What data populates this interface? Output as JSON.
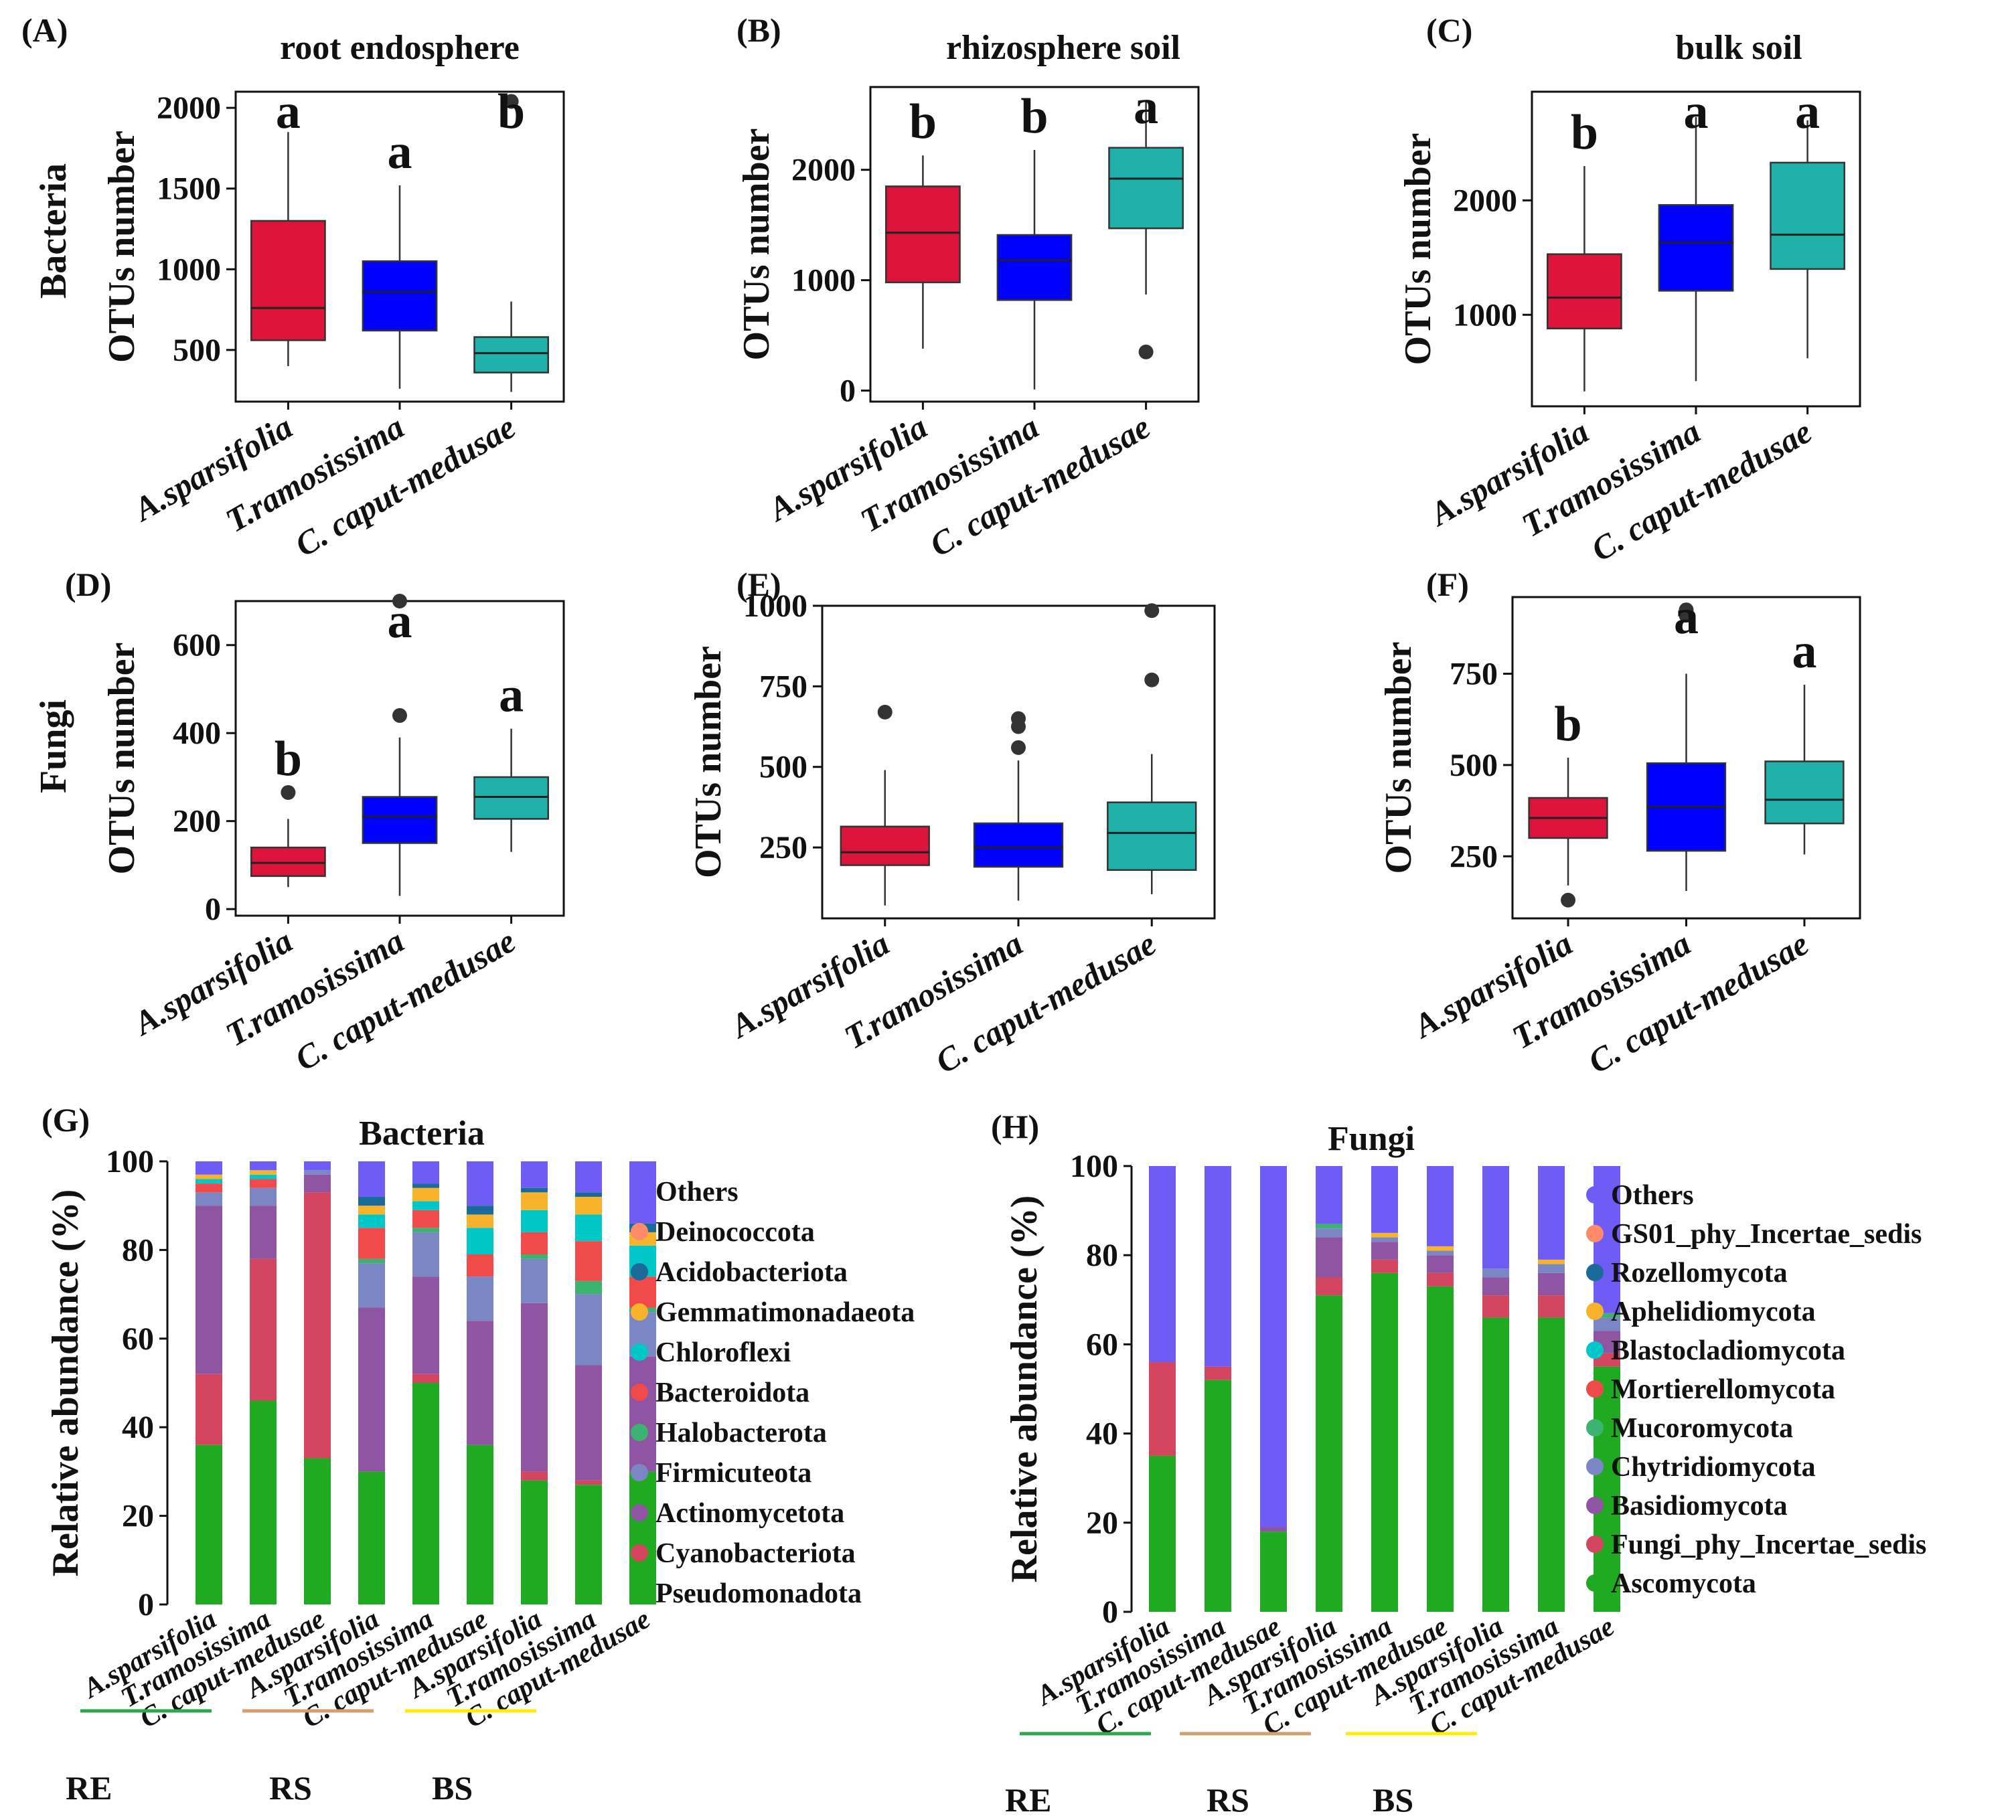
{
  "figure": {
    "row_labels": {
      "bacteria": "Bacteria",
      "fungi": "Fungi"
    },
    "y_label": "OTUs number",
    "categories": [
      "A.sparsifolia",
      "T.ramosissima",
      "C. caput-medusae"
    ],
    "group_colors": [
      "#dc143c",
      "#0000ff",
      "#20b2aa"
    ]
  },
  "chart_data": [
    {
      "type": "box",
      "panel": "(A)",
      "title": "root endosphere",
      "row": "Bacteria",
      "ylim": [
        180,
        2100
      ],
      "yticks": [
        500,
        1000,
        1500,
        2000
      ],
      "boxes": [
        {
          "category": "A.sparsifolia",
          "min": 400,
          "q1": 560,
          "median": 760,
          "q3": 1300,
          "max": 1850,
          "outliers": [],
          "letter": "a"
        },
        {
          "category": "T.ramosissima",
          "min": 260,
          "q1": 620,
          "median": 860,
          "q3": 1050,
          "max": 1520,
          "outliers": [],
          "letter": "a"
        },
        {
          "category": "C. caput-medusae",
          "min": 240,
          "q1": 360,
          "median": 480,
          "q3": 580,
          "max": 800,
          "outliers": [
            2040
          ],
          "letter": "b"
        }
      ]
    },
    {
      "type": "box",
      "panel": "(B)",
      "title": "rhizosphere soil",
      "row": "Bacteria",
      "ylim": [
        -100,
        2750
      ],
      "yticks": [
        0,
        1000,
        2000
      ],
      "boxes": [
        {
          "category": "A.sparsifolia",
          "min": 380,
          "q1": 980,
          "median": 1430,
          "q3": 1850,
          "max": 2130,
          "outliers": [],
          "letter": "b"
        },
        {
          "category": "T.ramosissima",
          "min": 10,
          "q1": 820,
          "median": 1180,
          "q3": 1410,
          "max": 2180,
          "outliers": [],
          "letter": "b"
        },
        {
          "category": "C. caput-medusae",
          "min": 870,
          "q1": 1470,
          "median": 1920,
          "q3": 2200,
          "max": 2620,
          "outliers": [
            350
          ],
          "letter": "a"
        }
      ]
    },
    {
      "type": "box",
      "panel": "(C)",
      "title": "bulk soil",
      "row": "Bacteria",
      "ylim": [
        200,
        2950
      ],
      "yticks": [
        1000,
        2000
      ],
      "boxes": [
        {
          "category": "A.sparsifolia",
          "min": 330,
          "q1": 880,
          "median": 1150,
          "q3": 1530,
          "max": 2300,
          "outliers": [],
          "letter": "b"
        },
        {
          "category": "T.ramosissima",
          "min": 420,
          "q1": 1210,
          "median": 1630,
          "q3": 1960,
          "max": 2730,
          "outliers": [],
          "letter": "a"
        },
        {
          "category": "C. caput-medusae",
          "min": 620,
          "q1": 1400,
          "median": 1700,
          "q3": 2330,
          "max": 2700,
          "outliers": [],
          "letter": "a"
        }
      ]
    },
    {
      "type": "box",
      "panel": "(D)",
      "title": "",
      "row": "Fungi",
      "ylim": [
        -15,
        700
      ],
      "yticks": [
        0,
        200,
        400,
        600
      ],
      "boxes": [
        {
          "category": "A.sparsifolia",
          "min": 50,
          "q1": 75,
          "median": 105,
          "q3": 140,
          "max": 205,
          "outliers": [
            265
          ],
          "letter": "b"
        },
        {
          "category": "T.ramosissima",
          "min": 30,
          "q1": 150,
          "median": 210,
          "q3": 255,
          "max": 390,
          "outliers": [
            440,
            700
          ],
          "letter": "a"
        },
        {
          "category": "C. caput-medusae",
          "min": 130,
          "q1": 205,
          "median": 255,
          "q3": 300,
          "max": 410,
          "outliers": [],
          "letter": "a"
        }
      ]
    },
    {
      "type": "box",
      "panel": "(E)",
      "title": "",
      "row": "Fungi",
      "ylim": [
        30,
        1000
      ],
      "yticks": [
        250,
        500,
        750,
        1000
      ],
      "boxes": [
        {
          "category": "A.sparsifolia",
          "min": 70,
          "q1": 195,
          "median": 235,
          "q3": 315,
          "max": 490,
          "outliers": [
            670
          ],
          "letter": ""
        },
        {
          "category": "T.ramosissima",
          "min": 85,
          "q1": 190,
          "median": 250,
          "q3": 325,
          "max": 520,
          "outliers": [
            560,
            625,
            650
          ],
          "letter": ""
        },
        {
          "category": "C. caput-medusae",
          "min": 105,
          "q1": 180,
          "median": 295,
          "q3": 390,
          "max": 540,
          "outliers": [
            770,
            985
          ],
          "letter": ""
        }
      ]
    },
    {
      "type": "box",
      "panel": "(F)",
      "title": "",
      "row": "Fungi",
      "ylim": [
        80,
        960
      ],
      "yticks": [
        250,
        500,
        750
      ],
      "boxes": [
        {
          "category": "A.sparsifolia",
          "min": 170,
          "q1": 300,
          "median": 355,
          "q3": 410,
          "max": 520,
          "outliers": [
            130
          ],
          "letter": "b"
        },
        {
          "category": "T.ramosissima",
          "min": 155,
          "q1": 265,
          "median": 385,
          "q3": 505,
          "max": 750,
          "outliers": [
            910,
            925
          ],
          "letter": "a"
        },
        {
          "category": "C. caput-medusae",
          "min": 255,
          "q1": 340,
          "median": 405,
          "q3": 510,
          "max": 720,
          "outliers": [],
          "letter": "a"
        }
      ]
    },
    {
      "type": "stacked_bar",
      "panel": "(G)",
      "title": "Bacteria",
      "ylabel": "Relative abundance (%)",
      "ylim": [
        0,
        100
      ],
      "yticks": [
        0,
        20,
        40,
        60,
        80,
        100
      ],
      "categories": [
        "A.sparsifolia",
        "T.ramosissima",
        "C. caput-medusae",
        "A.sparsifolia",
        "T.ramosissima",
        "C. caput-medusae",
        "A.sparsifolia",
        "T.ramosissima",
        "C. caput-medusae"
      ],
      "groups": [
        {
          "label": "RE",
          "color": "#2aa84a"
        },
        {
          "label": "RS",
          "color": "#d2a06e"
        },
        {
          "label": "BS",
          "color": "#ffee00"
        }
      ],
      "series": [
        {
          "name": "Pseudomonadota",
          "color": "#1faa22",
          "values": [
            36,
            46,
            33,
            30,
            50,
            36,
            28,
            27,
            30
          ]
        },
        {
          "name": "Cyanobacteriota",
          "color": "#d4465f",
          "values": [
            16,
            32,
            60,
            0,
            2,
            0,
            2,
            1,
            0
          ]
        },
        {
          "name": "Actinomycetota",
          "color": "#9055a2",
          "values": [
            38,
            12,
            4,
            37,
            22,
            28,
            38,
            26,
            26
          ]
        },
        {
          "name": "Firmicuteota",
          "color": "#7b86c4",
          "values": [
            3,
            4,
            1,
            10,
            10,
            10,
            10,
            16,
            10
          ]
        },
        {
          "name": "Halobacterota",
          "color": "#3cb371",
          "values": [
            0,
            0,
            0,
            1,
            1,
            0,
            1,
            3,
            1
          ]
        },
        {
          "name": "Bacteroidota",
          "color": "#f04a4a",
          "values": [
            2,
            2,
            0,
            7,
            4,
            5,
            5,
            9,
            7
          ]
        },
        {
          "name": "Chloroflexi",
          "color": "#00c8c8",
          "values": [
            1,
            1,
            0,
            3,
            2,
            6,
            5,
            6,
            7
          ]
        },
        {
          "name": "Gemmatimonadaeota",
          "color": "#f8b32c",
          "values": [
            1,
            1,
            0,
            2,
            3,
            3,
            4,
            4,
            3
          ]
        },
        {
          "name": "Acidobacteriota",
          "color": "#1a6a9a",
          "values": [
            0,
            0,
            0,
            2,
            1,
            2,
            1,
            1,
            2
          ]
        },
        {
          "name": "Deinococcota",
          "color": "#ff8c69",
          "values": [
            0,
            0,
            0,
            0,
            0,
            0,
            0,
            0,
            0
          ]
        },
        {
          "name": "Others",
          "color": "#6f5cf5",
          "values": [
            3,
            2,
            2,
            8,
            5,
            10,
            6,
            7,
            14
          ]
        }
      ]
    },
    {
      "type": "stacked_bar",
      "panel": "(H)",
      "title": "Fungi",
      "ylabel": "Relative abundance (%)",
      "ylim": [
        0,
        100
      ],
      "yticks": [
        0,
        20,
        40,
        60,
        80,
        100
      ],
      "categories": [
        "A.sparsifolia",
        "T.ramosissima",
        "C. caput-medusae",
        "A.sparsifolia",
        "T.ramosissima",
        "C. caput-medusae",
        "A.sparsifolia",
        "T.ramosissima",
        "C. caput-medusae"
      ],
      "groups": [
        {
          "label": "RE",
          "color": "#2aa84a"
        },
        {
          "label": "RS",
          "color": "#d2a06e"
        },
        {
          "label": "BS",
          "color": "#ffee00"
        }
      ],
      "series": [
        {
          "name": "Ascomycota",
          "color": "#1faa22",
          "values": [
            35,
            52,
            18,
            71,
            76,
            73,
            66,
            66,
            55
          ]
        },
        {
          "name": "Fungi_phy_Incertae_sedis",
          "color": "#d4465f",
          "values": [
            21,
            3,
            0,
            4,
            3,
            3,
            5,
            5,
            3
          ]
        },
        {
          "name": "Basidiomycota",
          "color": "#9055a2",
          "values": [
            0,
            0,
            1,
            9,
            4,
            4,
            4,
            5,
            5
          ]
        },
        {
          "name": "Chytridiomycota",
          "color": "#7b86c4",
          "values": [
            0,
            0,
            0,
            2,
            1,
            1,
            2,
            2,
            3
          ]
        },
        {
          "name": "Mucoromycota",
          "color": "#3cb371",
          "values": [
            0,
            0,
            0,
            1,
            0,
            0,
            0,
            0,
            1
          ]
        },
        {
          "name": "Mortierellomycota",
          "color": "#f04a4a",
          "values": [
            0,
            0,
            0,
            0,
            0,
            0,
            0,
            0,
            0
          ]
        },
        {
          "name": "Blastocladiomycota",
          "color": "#00c8c8",
          "values": [
            0,
            0,
            0,
            0,
            0,
            0,
            0,
            0,
            0
          ]
        },
        {
          "name": "Aphelidiomycota",
          "color": "#f8b32c",
          "values": [
            0,
            0,
            0,
            0,
            1,
            1,
            0,
            1,
            0
          ]
        },
        {
          "name": "Rozellomycota",
          "color": "#1a6a9a",
          "values": [
            0,
            0,
            0,
            0,
            0,
            0,
            0,
            0,
            0
          ]
        },
        {
          "name": "GS01_phy_Incertae_sedis",
          "color": "#ff8c69",
          "values": [
            0,
            0,
            0,
            0,
            0,
            0,
            0,
            0,
            0
          ]
        },
        {
          "name": "Others",
          "color": "#6f5cf5",
          "values": [
            44,
            45,
            81,
            13,
            15,
            18,
            23,
            21,
            33
          ]
        }
      ]
    }
  ]
}
